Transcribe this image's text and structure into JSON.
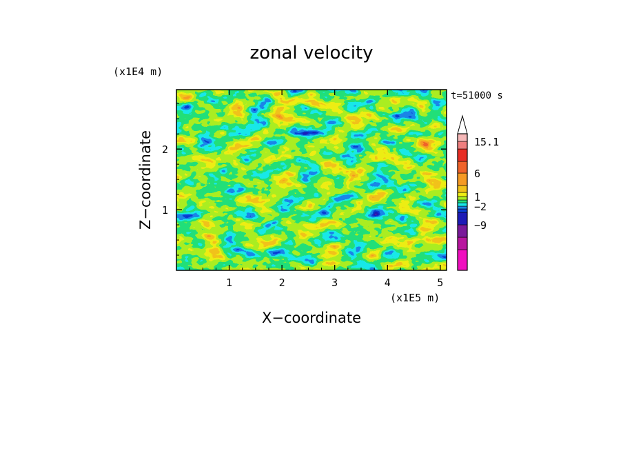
{
  "chart_data": {
    "type": "heatmap",
    "title": "zonal velocity",
    "xlabel": "X−coordinate",
    "ylabel": "Z−coordinate",
    "x_unit": "(x1E5 m)",
    "y_unit": "(x1E4 m)",
    "time_label": "t=51000 s",
    "xlim": [
      0,
      5.12
    ],
    "ylim": [
      0,
      2.98
    ],
    "x_ticks": [
      1,
      2,
      3,
      4,
      5
    ],
    "y_ticks": [
      1,
      2
    ],
    "x_tick_labels": [
      "1",
      "2",
      "3",
      "4",
      "5"
    ],
    "y_tick_labels": [
      "1",
      "2"
    ],
    "colorbar": {
      "levels": [
        -15,
        -12,
        -9,
        -6,
        -4,
        -2,
        -1,
        0,
        1,
        2,
        4,
        6,
        9,
        12,
        15.1
      ],
      "tick_labels": [
        {
          "value": 15.1,
          "label": "15.1"
        },
        {
          "value": 6,
          "label": "6"
        },
        {
          "value": 1,
          "label": "1"
        },
        {
          "value": -2,
          "label": "−2"
        },
        {
          "value": -9,
          "label": "−9"
        }
      ],
      "colors": [
        "#f00fbf",
        "#b8169f",
        "#7a1a9a",
        "#1d1bb7",
        "#0a3fd4",
        "#1a86e8",
        "#19e8e8",
        "#22e07a",
        "#aaee22",
        "#eeee14",
        "#f2c21a",
        "#f59a24",
        "#f0632a",
        "#e82d24",
        "#ef7f7f",
        "#f6b8b8"
      ]
    }
  }
}
